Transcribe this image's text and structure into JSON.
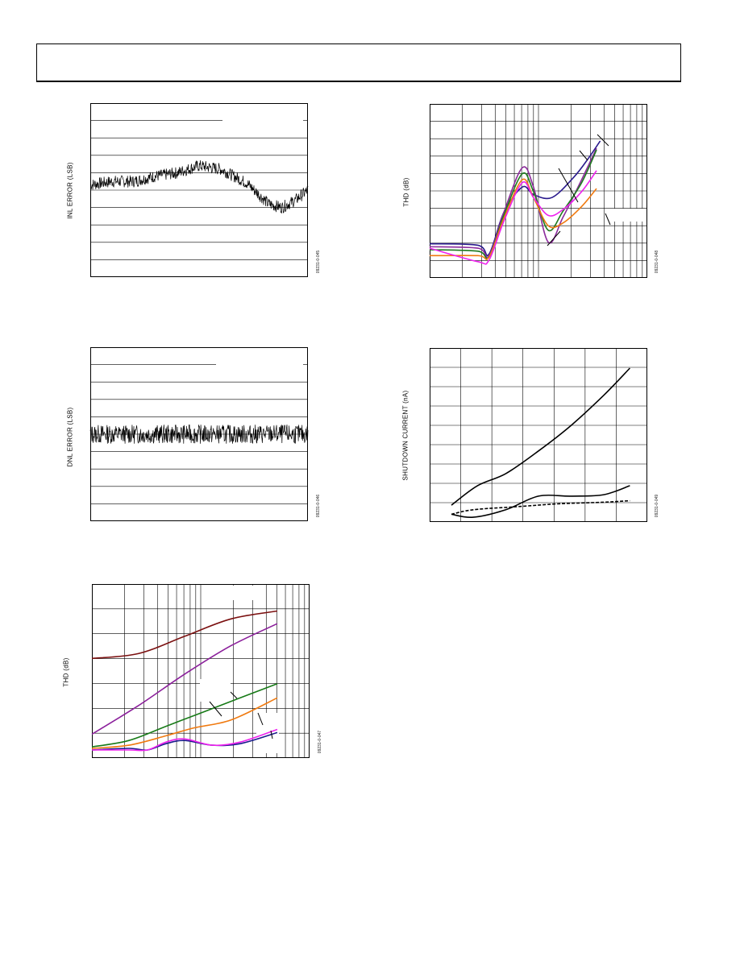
{
  "charts": {
    "inl": {
      "ylabel": "INL ERROR (LSB)",
      "code": "09231-0-045",
      "chart_data": {
        "type": "line",
        "ylabel": "INL ERROR (LSB)",
        "grid": true,
        "ylim": [
          -0.5,
          0.5
        ],
        "series": [
          {
            "color": "#000000",
            "shape": [
              [
                0,
                0.03
              ],
              [
                0.1,
                0.05
              ],
              [
                0.2,
                0.05
              ],
              [
                0.3,
                0.08
              ],
              [
                0.4,
                0.1
              ],
              [
                0.5,
                0.14
              ],
              [
                0.6,
                0.12
              ],
              [
                0.72,
                0.04
              ],
              [
                0.82,
                -0.08
              ],
              [
                0.88,
                -0.1
              ],
              [
                0.94,
                -0.06
              ],
              [
                1.0,
                0.0
              ]
            ],
            "noise": 0.035
          }
        ]
      }
    },
    "dnl": {
      "ylabel": "DNL ERROR (LSB)",
      "code": "09231-0-046",
      "chart_data": {
        "type": "line",
        "ylabel": "DNL ERROR (LSB)",
        "grid": true,
        "ylim": [
          -0.5,
          0.5
        ],
        "series": [
          {
            "color": "#000000",
            "shape": [
              [
                0,
                0.0
              ],
              [
                1,
                0.0
              ]
            ],
            "noise": 0.055
          }
        ]
      }
    },
    "thd_bottom": {
      "ylabel": "THD (dB)",
      "code": "09231-0-047",
      "chart_data": {
        "type": "line",
        "ylabel": "THD (dB)",
        "xscale": "log",
        "grid": true,
        "series": [
          {
            "color": "#7b1010",
            "points": [
              [
                0,
                0.58
              ],
              [
                0.25,
                0.61
              ],
              [
                0.5,
                0.72
              ],
              [
                0.75,
                0.83
              ],
              [
                1,
                0.88
              ]
            ]
          },
          {
            "color": "#8b1f9b",
            "points": [
              [
                0,
                0.1
              ],
              [
                0.25,
                0.28
              ],
              [
                0.5,
                0.48
              ],
              [
                0.75,
                0.66
              ],
              [
                1,
                0.8
              ]
            ]
          },
          {
            "color": "#177a17",
            "points": [
              [
                0,
                0.02
              ],
              [
                0.2,
                0.06
              ],
              [
                0.4,
                0.15
              ],
              [
                0.6,
                0.24
              ],
              [
                0.8,
                0.33
              ],
              [
                1,
                0.42
              ]
            ]
          },
          {
            "color": "#f07a10",
            "points": [
              [
                0,
                0.01
              ],
              [
                0.2,
                0.03
              ],
              [
                0.4,
                0.09
              ],
              [
                0.55,
                0.14
              ],
              [
                0.75,
                0.19
              ],
              [
                1,
                0.33
              ]
            ]
          },
          {
            "color": "#1a1a8c",
            "points": [
              [
                0,
                0.0
              ],
              [
                0.2,
                0.01
              ],
              [
                0.3,
                0.0
              ],
              [
                0.4,
                0.04
              ],
              [
                0.5,
                0.06
              ],
              [
                0.65,
                0.03
              ],
              [
                0.8,
                0.04
              ],
              [
                1,
                0.11
              ]
            ]
          },
          {
            "color": "#ee22ee",
            "points": [
              [
                0,
                0.0
              ],
              [
                0.2,
                0.0
              ],
              [
                0.3,
                0.0
              ],
              [
                0.4,
                0.05
              ],
              [
                0.5,
                0.07
              ],
              [
                0.65,
                0.03
              ],
              [
                0.8,
                0.05
              ],
              [
                1,
                0.13
              ]
            ]
          }
        ]
      }
    },
    "thd_top": {
      "ylabel": "THD (dB)",
      "code": "09231-0-048",
      "chart_data": {
        "type": "line",
        "ylabel": "THD (dB)",
        "xscale": "log",
        "grid": true,
        "series": [
          {
            "color": "#2a1a8c",
            "points": [
              [
                0,
                0.17
              ],
              [
                0.26,
                0.16
              ],
              [
                0.32,
                0.1
              ],
              [
                0.4,
                0.38
              ],
              [
                0.5,
                0.55
              ],
              [
                0.56,
                0.5
              ],
              [
                0.66,
                0.48
              ],
              [
                0.78,
                0.62
              ],
              [
                0.86,
                0.75
              ],
              [
                0.92,
                0.86
              ]
            ]
          },
          {
            "color": "#8b2a9b",
            "points": [
              [
                0,
                0.15
              ],
              [
                0.26,
                0.14
              ],
              [
                0.32,
                0.09
              ],
              [
                0.4,
                0.38
              ],
              [
                0.5,
                0.68
              ],
              [
                0.56,
                0.55
              ],
              [
                0.64,
                0.18
              ],
              [
                0.72,
                0.35
              ],
              [
                0.82,
                0.6
              ],
              [
                0.9,
                0.81
              ]
            ]
          },
          {
            "color": "#1f7a1f",
            "points": [
              [
                0,
                0.13
              ],
              [
                0.26,
                0.12
              ],
              [
                0.32,
                0.08
              ],
              [
                0.4,
                0.36
              ],
              [
                0.5,
                0.64
              ],
              [
                0.56,
                0.52
              ],
              [
                0.64,
                0.26
              ],
              [
                0.72,
                0.39
              ],
              [
                0.82,
                0.58
              ],
              [
                0.9,
                0.8
              ]
            ]
          },
          {
            "color": "#f07a10",
            "points": [
              [
                0,
                0.09
              ],
              [
                0.26,
                0.09
              ],
              [
                0.32,
                0.08
              ],
              [
                0.4,
                0.34
              ],
              [
                0.5,
                0.6
              ],
              [
                0.56,
                0.48
              ],
              [
                0.64,
                0.29
              ],
              [
                0.72,
                0.31
              ],
              [
                0.82,
                0.42
              ],
              [
                0.9,
                0.54
              ]
            ]
          },
          {
            "color": "#ee22ee",
            "points": [
              [
                0,
                0.14
              ],
              [
                0.26,
                0.05
              ],
              [
                0.32,
                0.06
              ],
              [
                0.4,
                0.32
              ],
              [
                0.5,
                0.58
              ],
              [
                0.56,
                0.48
              ],
              [
                0.64,
                0.36
              ],
              [
                0.72,
                0.4
              ],
              [
                0.82,
                0.52
              ],
              [
                0.9,
                0.66
              ]
            ]
          }
        ]
      }
    },
    "shutdown": {
      "ylabel": "SHUTDOWN CURRENT (nA)",
      "code": "09231-0-049",
      "chart_data": {
        "type": "line",
        "ylabel": "SHUTDOWN CURRENT (nA)",
        "grid": true,
        "series": [
          {
            "color": "#000000",
            "points": [
              [
                0.1,
                0.09
              ],
              [
                0.22,
                0.22
              ],
              [
                0.35,
                0.3
              ],
              [
                0.5,
                0.45
              ],
              [
                0.65,
                0.62
              ],
              [
                0.8,
                0.82
              ],
              [
                0.92,
                1.0
              ]
            ]
          },
          {
            "color": "#000000",
            "points": [
              [
                0.1,
                0.03
              ],
              [
                0.2,
                0.01
              ],
              [
                0.35,
                0.06
              ],
              [
                0.5,
                0.15
              ],
              [
                0.65,
                0.15
              ],
              [
                0.8,
                0.16
              ],
              [
                0.92,
                0.22
              ]
            ]
          },
          {
            "color": "#000000",
            "dash": true,
            "points": [
              [
                0.1,
                0.03
              ],
              [
                0.2,
                0.06
              ],
              [
                0.4,
                0.08
              ],
              [
                0.6,
                0.1
              ],
              [
                0.8,
                0.11
              ],
              [
                0.92,
                0.12
              ]
            ]
          }
        ]
      }
    }
  }
}
